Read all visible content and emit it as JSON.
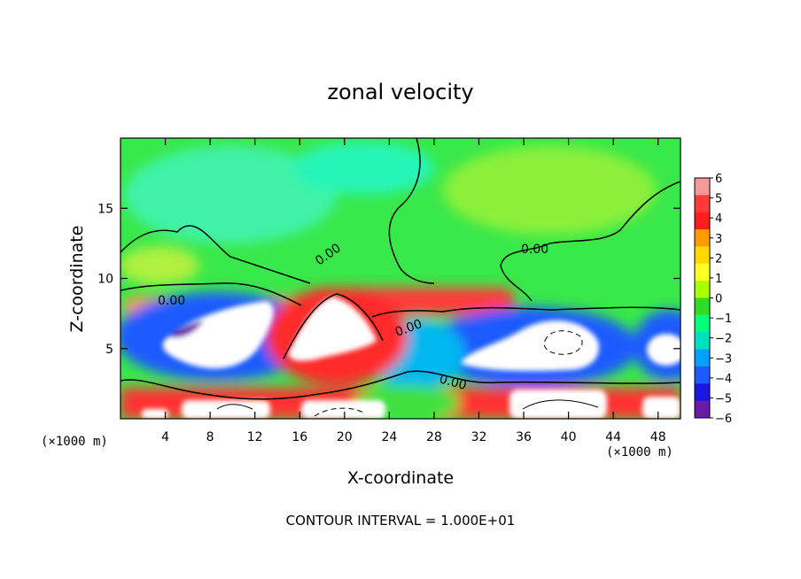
{
  "chart_data": {
    "type": "heatmap",
    "title": "zonal velocity",
    "xlabel": "X-coordinate",
    "ylabel": "Z-coordinate",
    "x_unit": "(×1000 m)",
    "x_unit_right": "(×1000 m)",
    "xlim": [
      0,
      50
    ],
    "ylim": [
      0,
      20
    ],
    "x_ticks": [
      4,
      8,
      12,
      16,
      20,
      24,
      28,
      32,
      36,
      40,
      44,
      48
    ],
    "y_ticks": [
      5,
      10,
      15
    ],
    "colorbar": {
      "range": [
        -6,
        6
      ],
      "ticks": [
        6,
        5,
        4,
        3,
        2,
        1,
        0,
        -1,
        -2,
        -3,
        -4,
        -5,
        -6
      ],
      "colors": [
        "#f49a9a",
        "#ff3a3a",
        "#ff1e1e",
        "#ff9a00",
        "#ffd800",
        "#ffff2a",
        "#aaff00",
        "#2ddd28",
        "#00ff80",
        "#00e0c0",
        "#00a0ff",
        "#1e5aff",
        "#1818e0",
        "#6a1aa8"
      ]
    },
    "contour_labels": [
      "0.00",
      "0.00",
      "0.00",
      "0.00",
      "0.00"
    ],
    "footer": "CONTOUR INTERVAL = 1.000E+01",
    "regions": [
      {
        "kind": "background",
        "value": 0.2
      },
      {
        "kind": "patch",
        "value": -1.8,
        "x": 10,
        "z": 15.5,
        "rx": 8,
        "rz": 3
      },
      {
        "kind": "patch",
        "value": -1.5,
        "x": 22,
        "z": 18,
        "rx": 6,
        "rz": 2
      },
      {
        "kind": "patch",
        "value": 1.2,
        "x": 40,
        "z": 16,
        "rx": 8,
        "rz": 3
      },
      {
        "kind": "band",
        "value": 3.5,
        "x": [
          5,
          30
        ],
        "z": [
          8,
          9.5
        ]
      },
      {
        "kind": "negative-core",
        "value": -6,
        "x": [
          1,
          15
        ],
        "z": [
          3,
          7.5
        ]
      },
      {
        "kind": "negative-core",
        "value": -6,
        "x": [
          30,
          46
        ],
        "z": [
          3,
          7.5
        ]
      },
      {
        "kind": "positive-core",
        "value": 6,
        "x": [
          14,
          24
        ],
        "z": [
          3,
          8.5
        ]
      },
      {
        "kind": "positive-band",
        "value": 5,
        "x": [
          0,
          50
        ],
        "z": [
          0,
          2.5
        ]
      }
    ]
  }
}
